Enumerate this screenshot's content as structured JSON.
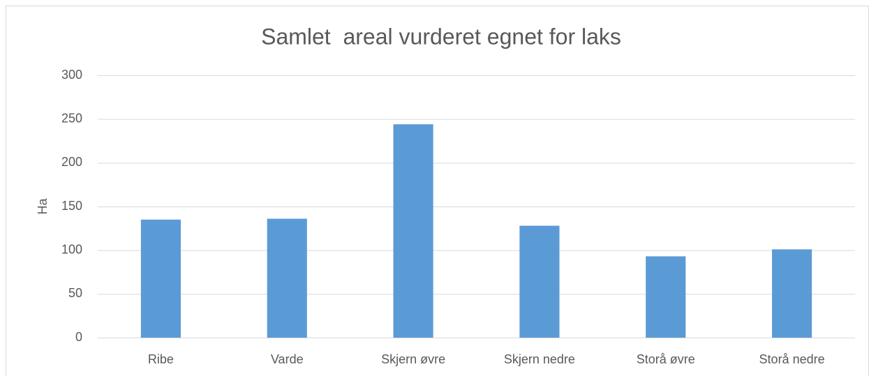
{
  "chart_data": {
    "type": "bar",
    "title": "Samlet  areal vurderet egnet for laks",
    "y_label": "Ha",
    "categories": [
      "Ribe",
      "Varde",
      "Skjern øvre",
      "Skjern nedre",
      "Storå øvre",
      "Storå nedre"
    ],
    "values": [
      135,
      136,
      244,
      128,
      93,
      101
    ],
    "color": "#5b9bd5",
    "ylim": [
      0,
      300
    ],
    "yticks": [
      0,
      50,
      100,
      150,
      200,
      250,
      300
    ],
    "grid": true
  }
}
